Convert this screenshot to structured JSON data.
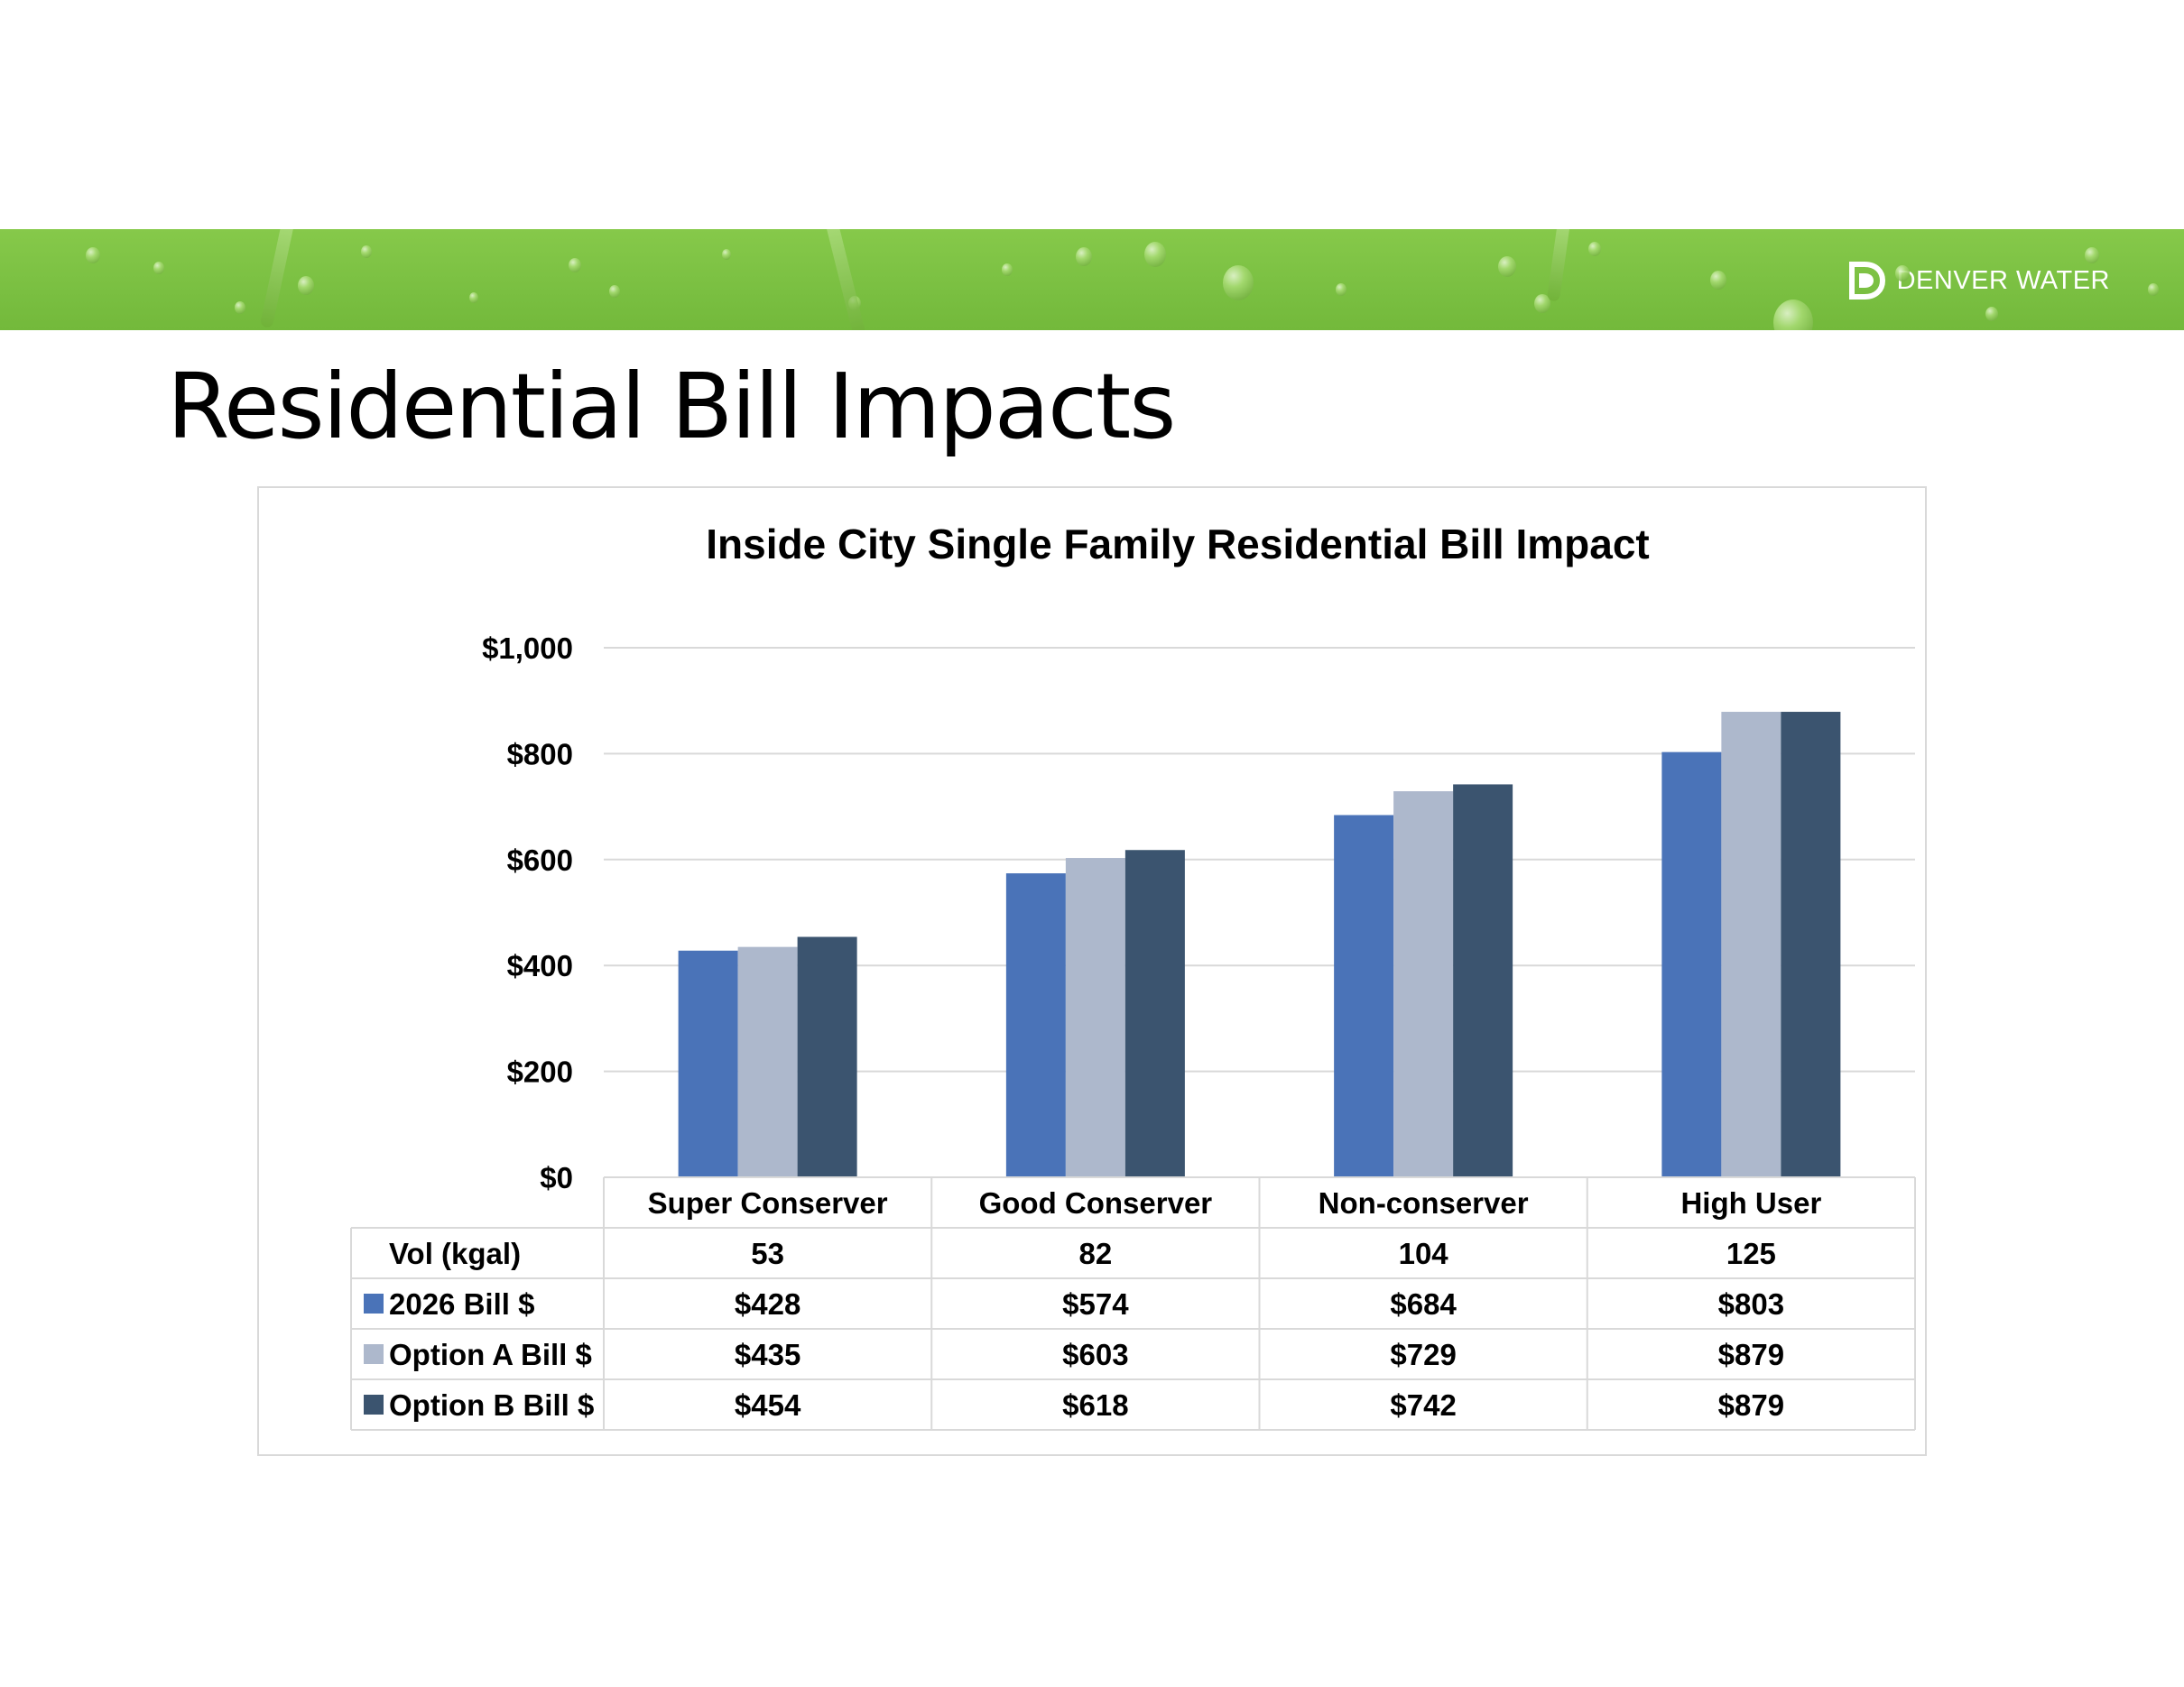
{
  "slide": {
    "title": "Residential Bill Impacts",
    "brand": "DENVER WATER",
    "banner_color": "#7cc143"
  },
  "chart_data": {
    "type": "bar",
    "title": "Inside City Single Family Residential Bill Impact",
    "categories": [
      "Super Conserver",
      "Good Conserver",
      "Non-conserver",
      "High User"
    ],
    "series": [
      {
        "name": "2026 Bill $",
        "values": [
          428,
          574,
          684,
          803
        ],
        "color": "#4a73b8"
      },
      {
        "name": "Option A Bill $",
        "values": [
          435,
          603,
          729,
          879
        ],
        "color": "#adb8cc"
      },
      {
        "name": "Option B Bill $",
        "values": [
          454,
          618,
          742,
          879
        ],
        "color": "#3b546f"
      }
    ],
    "ylim": [
      0,
      1000
    ],
    "yticks": [
      0,
      200,
      400,
      600,
      800,
      1000
    ],
    "ytick_labels": [
      "$0",
      "$200",
      "$400",
      "$600",
      "$800",
      "$1,000"
    ],
    "grid": true,
    "legend_placement": "data-table",
    "data_table": {
      "volume_row_label": "Vol (kgal)",
      "volume": [
        "53",
        "82",
        "104",
        "125"
      ],
      "rows": [
        {
          "label": "2026 Bill $",
          "values": [
            "$428",
            "$574",
            "$684",
            "$803"
          ]
        },
        {
          "label": "Option A Bill $",
          "values": [
            "$435",
            "$603",
            "$729",
            "$879"
          ]
        },
        {
          "label": "Option B Bill $",
          "values": [
            "$454",
            "$618",
            "$742",
            "$879"
          ]
        }
      ]
    }
  }
}
